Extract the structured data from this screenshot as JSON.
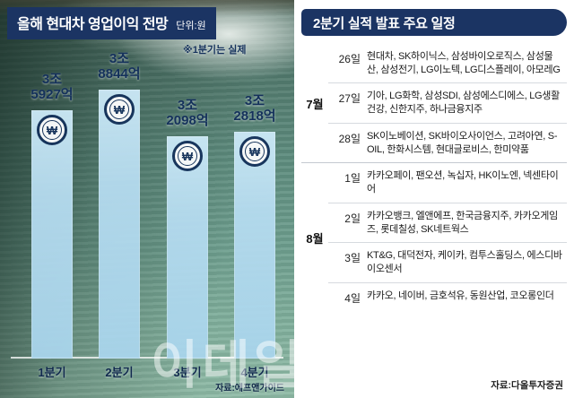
{
  "watermark": "이데일리",
  "colors": {
    "navy": "#1b3463",
    "bar_blue": "#b6dcf0"
  },
  "left": {
    "title": "올해 현대차 영업이익 전망",
    "unit": "단위:원",
    "note": "※1분기는 실제",
    "source": "자료:에프앤가이드"
  },
  "chart_data": {
    "type": "bar",
    "title": "올해 현대차 영업이익 전망",
    "unit_label": "단위:원",
    "note": "※1분기는 실제",
    "categories": [
      "1분기",
      "2분기",
      "3분기",
      "4분기"
    ],
    "values": [
      35927,
      38844,
      32098,
      32818
    ],
    "value_unit": "억원",
    "labels": [
      [
        "3조",
        "5927억"
      ],
      [
        "3조",
        "8844억"
      ],
      [
        "3조",
        "2098억"
      ],
      [
        "3조",
        "2818억"
      ]
    ],
    "ylim": [
      0,
      38844
    ],
    "won_symbol": "₩",
    "source": "자료:에프앤가이드"
  },
  "right": {
    "title": "2분기 실적 발표 주요 일정",
    "source": "자료:다올투자증권",
    "groups": [
      {
        "month": "7월",
        "rows": [
          {
            "day": "26일",
            "companies": "현대차, SK하이닉스, 삼성바이오로직스, 삼성물산, 삼성전기, LG이노텍, LG디스플레이, 아모레G"
          },
          {
            "day": "27일",
            "companies": "기아, LG화학, 삼성SDI, 삼성에스디에스, LG생활건강, 신한지주, 하나금융지주"
          },
          {
            "day": "28일",
            "companies": "SK이노베이션, SK바이오사이언스, 고려아연, S-OIL, 한화시스템, 현대글로비스, 한미약품"
          }
        ]
      },
      {
        "month": "8월",
        "rows": [
          {
            "day": "1일",
            "companies": "카카오페이, 팬오션, 녹십자, HK이노엔, 넥센타이어"
          },
          {
            "day": "2일",
            "companies": "카카오뱅크, 엘앤에프, 한국금융지주, 카카오게임즈, 롯데칠성, SK네트웍스"
          },
          {
            "day": "3일",
            "companies": "KT&G, 대덕전자, 케이카, 컴투스홀딩스, 에스디바이오센서"
          },
          {
            "day": "4일",
            "companies": "카카오, 네이버, 금호석유, 동원산업, 코오롱인더"
          }
        ]
      }
    ]
  }
}
